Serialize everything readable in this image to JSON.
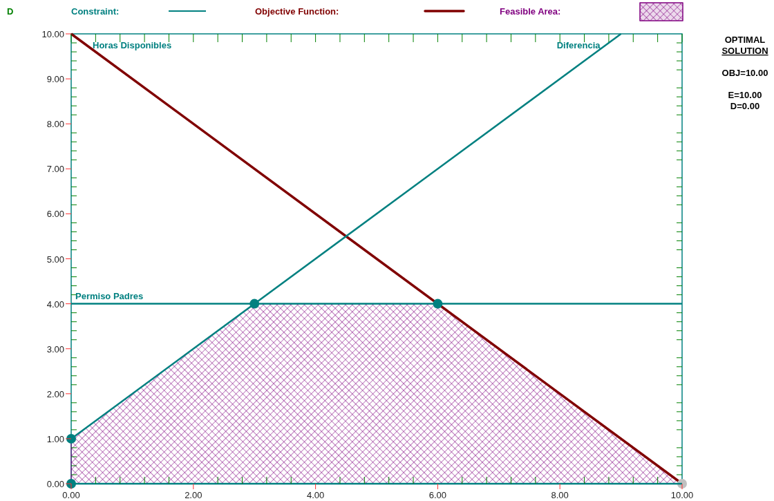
{
  "chart_data": {
    "type": "line",
    "ylabel": "D",
    "xlim": [
      0,
      10
    ],
    "ylim": [
      0,
      10
    ],
    "xticks": [
      {
        "value": 0,
        "label": "0.00"
      },
      {
        "value": 2,
        "label": "2.00"
      },
      {
        "value": 4,
        "label": "4.00"
      },
      {
        "value": 6,
        "label": "6.00"
      },
      {
        "value": 8,
        "label": "8.00"
      },
      {
        "value": 10,
        "label": "10.00"
      }
    ],
    "yticks": [
      {
        "value": 0,
        "label": "0.00"
      },
      {
        "value": 1,
        "label": "1.00"
      },
      {
        "value": 2,
        "label": "2.00"
      },
      {
        "value": 3,
        "label": "3.00"
      },
      {
        "value": 4,
        "label": "4.00"
      },
      {
        "value": 5,
        "label": "5.00"
      },
      {
        "value": 6,
        "label": "6.00"
      },
      {
        "value": 7,
        "label": "7.00"
      },
      {
        "value": 8,
        "label": "8.00"
      },
      {
        "value": 9,
        "label": "9.00"
      },
      {
        "value": 10,
        "label": "10.00"
      }
    ],
    "legend": "top",
    "grid": false,
    "series": [
      {
        "name": "Objective Function:",
        "color": "#800000",
        "x": [
          0,
          10
        ],
        "values": [
          10,
          0
        ]
      },
      {
        "name": "Feasible Area:",
        "type": "area",
        "color": "#800080",
        "x": [
          0,
          0,
          3,
          6,
          10
        ],
        "values": [
          0,
          1,
          4,
          4,
          0
        ]
      },
      {
        "name": "Diferencia",
        "color": "#008080",
        "x": [
          0,
          9
        ],
        "values": [
          1,
          10
        ]
      },
      {
        "name": "Permiso Padres",
        "color": "#008080",
        "x": [
          0,
          10
        ],
        "values": [
          4,
          4
        ]
      },
      {
        "type": "scatter",
        "color": "#008080",
        "x": [
          0,
          0,
          3,
          6
        ],
        "values": [
          0,
          1,
          4,
          4
        ]
      },
      {
        "type": "scatter",
        "color": "#c0c0c0",
        "x": [
          10
        ],
        "values": [
          0
        ]
      }
    ],
    "annotations": [
      "Constraint:",
      {
        "text": "Horas Disponibles",
        "x": 0,
        "y": 10
      },
      "OPTIMAL SOLUTION",
      "OBJ=10.00",
      "E=10.00",
      "D=0.00"
    ]
  }
}
